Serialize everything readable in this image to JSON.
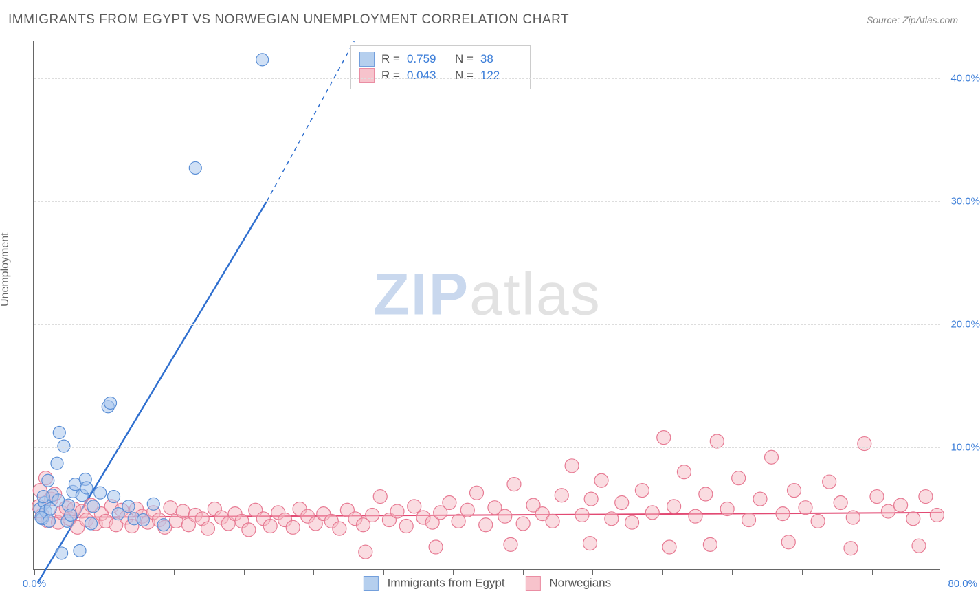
{
  "title": "IMMIGRANTS FROM EGYPT VS NORWEGIAN UNEMPLOYMENT CORRELATION CHART",
  "source": "Source: ZipAtlas.com",
  "ylabel": "Unemployment",
  "watermark_zip": "ZIP",
  "watermark_atlas": "atlas",
  "xlim": [
    0,
    80
  ],
  "ylim": [
    0,
    43
  ],
  "x_ticks": [
    0,
    6.15,
    12.31,
    18.46,
    24.62,
    30.77,
    36.92,
    43.08,
    49.23,
    55.38,
    61.54,
    67.69,
    73.85,
    80
  ],
  "x_tick_labels": {
    "0": "0.0%",
    "80": "80.0%"
  },
  "y_gridlines": [
    10,
    20,
    30,
    40
  ],
  "y_tick_labels": {
    "10": "10.0%",
    "20": "20.0%",
    "30": "30.0%",
    "40": "40.0%"
  },
  "series": {
    "egypt": {
      "label": "Immigrants from Egypt",
      "fill": "#a9c7ec",
      "stroke": "#5b8fd6",
      "fill_opacity": 0.55,
      "radius": 9,
      "R": "0.759",
      "N": "38",
      "trend": {
        "x1": 0.3,
        "y1": -1.0,
        "x2": 20.5,
        "y2": 30,
        "dash_x2": 28.2,
        "dash_y2": 43,
        "color": "#2f6fcf",
        "width": 2.5
      },
      "points": [
        [
          0.5,
          5.0
        ],
        [
          0.7,
          4.2
        ],
        [
          0.9,
          5.5
        ],
        [
          1.0,
          4.8
        ],
        [
          1.2,
          7.3
        ],
        [
          1.4,
          5.0
        ],
        [
          1.6,
          6.1
        ],
        [
          2.0,
          8.7
        ],
        [
          2.2,
          11.2
        ],
        [
          2.6,
          10.1
        ],
        [
          2.9,
          4.0
        ],
        [
          3.0,
          5.3
        ],
        [
          3.4,
          6.4
        ],
        [
          3.6,
          7.0
        ],
        [
          4.2,
          6.1
        ],
        [
          4.5,
          7.4
        ],
        [
          4.6,
          6.7
        ],
        [
          5.0,
          3.8
        ],
        [
          5.2,
          5.2
        ],
        [
          5.8,
          6.3
        ],
        [
          6.5,
          13.3
        ],
        [
          6.7,
          13.6
        ],
        [
          7.0,
          6.0
        ],
        [
          7.4,
          4.6
        ],
        [
          8.3,
          5.2
        ],
        [
          8.8,
          4.2
        ],
        [
          9.6,
          4.1
        ],
        [
          10.5,
          5.4
        ],
        [
          11.4,
          3.7
        ],
        [
          2.4,
          1.4
        ],
        [
          4.0,
          1.6
        ],
        [
          14.2,
          32.7
        ],
        [
          20.1,
          41.5
        ],
        [
          0.6,
          4.3
        ],
        [
          0.8,
          6.0
        ],
        [
          1.3,
          4.0
        ],
        [
          2.1,
          5.7
        ],
        [
          3.2,
          4.5
        ]
      ]
    },
    "norwegians": {
      "label": "Norwegians",
      "fill": "#f6b9c4",
      "stroke": "#e77a93",
      "fill_opacity": 0.5,
      "radius": 10,
      "R": "0.043",
      "N": "122",
      "trend": {
        "x1": 0,
        "y1": 4.3,
        "x2": 80,
        "y2": 4.7,
        "color": "#e24a73",
        "width": 2
      },
      "points": [
        [
          0.4,
          5.2
        ],
        [
          0.7,
          4.5
        ],
        [
          1.2,
          4.0
        ],
        [
          1.5,
          5.8
        ],
        [
          1.8,
          6.2
        ],
        [
          2.1,
          3.9
        ],
        [
          2.4,
          4.7
        ],
        [
          2.8,
          5.1
        ],
        [
          3.1,
          4.2
        ],
        [
          3.5,
          5.0
        ],
        [
          3.8,
          3.5
        ],
        [
          4.2,
          4.8
        ],
        [
          4.6,
          4.1
        ],
        [
          5.0,
          5.3
        ],
        [
          5.4,
          3.8
        ],
        [
          5.9,
          4.6
        ],
        [
          6.3,
          4.0
        ],
        [
          6.8,
          5.2
        ],
        [
          7.2,
          3.7
        ],
        [
          7.7,
          4.9
        ],
        [
          8.1,
          4.3
        ],
        [
          8.6,
          3.6
        ],
        [
          9.0,
          5.0
        ],
        [
          9.5,
          4.4
        ],
        [
          10.0,
          3.9
        ],
        [
          10.5,
          4.7
        ],
        [
          11.0,
          4.1
        ],
        [
          11.5,
          3.5
        ],
        [
          12.0,
          5.1
        ],
        [
          12.5,
          4.0
        ],
        [
          13.1,
          4.8
        ],
        [
          13.6,
          3.7
        ],
        [
          14.2,
          4.5
        ],
        [
          14.8,
          4.2
        ],
        [
          15.3,
          3.4
        ],
        [
          15.9,
          5.0
        ],
        [
          16.5,
          4.3
        ],
        [
          17.1,
          3.8
        ],
        [
          17.7,
          4.6
        ],
        [
          18.3,
          4.0
        ],
        [
          18.9,
          3.3
        ],
        [
          19.5,
          4.9
        ],
        [
          20.2,
          4.2
        ],
        [
          20.8,
          3.6
        ],
        [
          21.5,
          4.7
        ],
        [
          22.1,
          4.1
        ],
        [
          22.8,
          3.5
        ],
        [
          23.4,
          5.0
        ],
        [
          24.1,
          4.4
        ],
        [
          24.8,
          3.8
        ],
        [
          25.5,
          4.6
        ],
        [
          26.2,
          4.0
        ],
        [
          26.9,
          3.4
        ],
        [
          27.6,
          4.9
        ],
        [
          28.3,
          4.2
        ],
        [
          29.0,
          3.7
        ],
        [
          29.2,
          1.5
        ],
        [
          29.8,
          4.5
        ],
        [
          30.5,
          6.0
        ],
        [
          31.3,
          4.1
        ],
        [
          32.0,
          4.8
        ],
        [
          32.8,
          3.6
        ],
        [
          33.5,
          5.2
        ],
        [
          34.3,
          4.3
        ],
        [
          35.1,
          3.9
        ],
        [
          35.4,
          1.9
        ],
        [
          35.8,
          4.7
        ],
        [
          36.6,
          5.5
        ],
        [
          37.4,
          4.0
        ],
        [
          38.2,
          4.9
        ],
        [
          39.0,
          6.3
        ],
        [
          39.8,
          3.7
        ],
        [
          40.6,
          5.1
        ],
        [
          41.5,
          4.4
        ],
        [
          42.0,
          2.1
        ],
        [
          42.3,
          7.0
        ],
        [
          43.1,
          3.8
        ],
        [
          44.0,
          5.3
        ],
        [
          44.8,
          4.6
        ],
        [
          45.7,
          4.0
        ],
        [
          46.5,
          6.1
        ],
        [
          47.4,
          8.5
        ],
        [
          48.3,
          4.5
        ],
        [
          49.0,
          2.2
        ],
        [
          49.1,
          5.8
        ],
        [
          50.0,
          7.3
        ],
        [
          50.9,
          4.2
        ],
        [
          51.8,
          5.5
        ],
        [
          52.7,
          3.9
        ],
        [
          53.6,
          6.5
        ],
        [
          54.5,
          4.7
        ],
        [
          55.5,
          10.8
        ],
        [
          56.0,
          1.9
        ],
        [
          56.4,
          5.2
        ],
        [
          57.3,
          8.0
        ],
        [
          58.3,
          4.4
        ],
        [
          59.2,
          6.2
        ],
        [
          59.6,
          2.1
        ],
        [
          60.2,
          10.5
        ],
        [
          61.1,
          5.0
        ],
        [
          62.1,
          7.5
        ],
        [
          63.0,
          4.1
        ],
        [
          64.0,
          5.8
        ],
        [
          65.0,
          9.2
        ],
        [
          66.0,
          4.6
        ],
        [
          66.5,
          2.3
        ],
        [
          67.0,
          6.5
        ],
        [
          68.0,
          5.1
        ],
        [
          69.1,
          4.0
        ],
        [
          70.1,
          7.2
        ],
        [
          71.1,
          5.5
        ],
        [
          72.0,
          1.8
        ],
        [
          72.2,
          4.3
        ],
        [
          73.2,
          10.3
        ],
        [
          74.3,
          6.0
        ],
        [
          75.3,
          4.8
        ],
        [
          76.4,
          5.3
        ],
        [
          77.5,
          4.2
        ],
        [
          78.0,
          2.0
        ],
        [
          78.6,
          6.0
        ],
        [
          79.6,
          4.5
        ],
        [
          1.0,
          7.5
        ],
        [
          0.5,
          6.5
        ]
      ]
    }
  }
}
